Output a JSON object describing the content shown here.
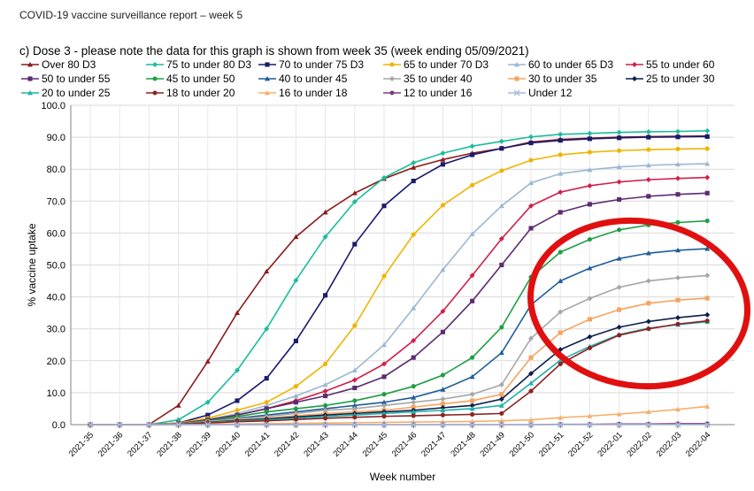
{
  "report_header": "COVID-19 vaccine surveillance report – week 5",
  "chart_data": {
    "type": "line",
    "title": "c) Dose 3 - please note the data for this graph is shown from week 35 (week ending 05/09/2021)",
    "xlabel": "Week number",
    "ylabel": "% vaccine uptake",
    "ylim": [
      0,
      100
    ],
    "yticks": [
      "0.0",
      "10.0",
      "20.0",
      "30.0",
      "40.0",
      "50.0",
      "60.0",
      "70.0",
      "80.0",
      "90.0",
      "100.0"
    ],
    "categories": [
      "2021-35",
      "2021-36",
      "2021-37",
      "2021-38",
      "2021-39",
      "2021-40",
      "2021-41",
      "2021-42",
      "2021-43",
      "2021-44",
      "2021-45",
      "2021-46",
      "2021-47",
      "2021-48",
      "2021-49",
      "2021-50",
      "2021-51",
      "2021-52",
      "2022-01",
      "2022-02",
      "2022-03",
      "2022-04"
    ],
    "grid": true,
    "legend_position": "top",
    "series": [
      {
        "name": "Over 80 D3",
        "color": "#8B1A1A",
        "marker": "triangle",
        "values": [
          0,
          0,
          0,
          6,
          19.8,
          35,
          48,
          58.8,
          66.5,
          72.5,
          77,
          80.5,
          83,
          85,
          86.5,
          88.5,
          89.3,
          89.7,
          90,
          90.2,
          90.3,
          90.4
        ]
      },
      {
        "name": "75 to under 80 D3",
        "color": "#1ABC9C",
        "marker": "diamond",
        "values": [
          0,
          0,
          0,
          1.5,
          7,
          17,
          30,
          45.2,
          58.8,
          69.8,
          77.3,
          82,
          85,
          87.2,
          88.7,
          90.1,
          90.9,
          91.2,
          91.5,
          91.7,
          91.8,
          92
        ]
      },
      {
        "name": "70 to under 75 D3",
        "color": "#1A1A6E",
        "marker": "square",
        "values": [
          0,
          0,
          0,
          0.5,
          3,
          7.5,
          14.5,
          26.2,
          40.5,
          56.5,
          68.5,
          76.3,
          81.5,
          84.5,
          86.5,
          88.2,
          89,
          89.5,
          89.8,
          90,
          90.1,
          90.2
        ]
      },
      {
        "name": "65 to under 70 D3",
        "color": "#F0B400",
        "marker": "circle",
        "values": [
          0,
          0,
          0,
          0.5,
          2,
          4.5,
          7,
          12,
          19,
          31,
          46.5,
          59.5,
          68.7,
          75,
          79.5,
          82.8,
          84.5,
          85.3,
          85.8,
          86.1,
          86.3,
          86.4
        ]
      },
      {
        "name": "60 to under 65 D3",
        "color": "#9AB7D3",
        "marker": "triangle",
        "values": [
          0,
          0,
          0,
          0.3,
          1.5,
          3.5,
          6,
          9,
          12.5,
          17,
          25,
          36.5,
          48.5,
          59.7,
          68.5,
          75.7,
          78.6,
          79.8,
          80.7,
          81.2,
          81.5,
          81.7
        ]
      },
      {
        "name": "55 to under 60",
        "color": "#D0204A",
        "marker": "diamond",
        "values": [
          0,
          0,
          0,
          0.3,
          1.5,
          3,
          5,
          7.5,
          10.5,
          14,
          19,
          26.3,
          35.5,
          46.7,
          58.2,
          68.5,
          72.8,
          74.8,
          76,
          76.7,
          77.1,
          77.4
        ]
      },
      {
        "name": "50 to under 55",
        "color": "#5B2C6F",
        "marker": "square",
        "values": [
          0,
          0,
          0,
          0.3,
          1.5,
          3,
          5,
          7,
          9,
          11.5,
          15,
          21,
          29,
          38.7,
          50,
          61.5,
          66.5,
          69,
          70.5,
          71.5,
          72.1,
          72.5
        ]
      },
      {
        "name": "45 to under 50",
        "color": "#1E9E44",
        "marker": "circle",
        "values": [
          0,
          0,
          0,
          0.2,
          1.2,
          2.5,
          4,
          5,
          6,
          7.5,
          9.5,
          12,
          15.5,
          21,
          30.5,
          46.2,
          54,
          58,
          61,
          62.5,
          63.3,
          63.8
        ]
      },
      {
        "name": "40 to under 45",
        "color": "#1F5C99",
        "marker": "triangle",
        "values": [
          0,
          0,
          0,
          0.2,
          1,
          2,
          3,
          4,
          5,
          6,
          7,
          8.5,
          11,
          15,
          22.5,
          37.5,
          45,
          49,
          52,
          53.7,
          54.6,
          55.1
        ]
      },
      {
        "name": "35 to under 40",
        "color": "#A6A6A6",
        "marker": "diamond",
        "values": [
          0,
          0,
          0,
          0.2,
          1,
          1.8,
          2.5,
          3.5,
          4.5,
          5,
          6,
          7,
          8,
          9.5,
          12.5,
          27,
          35.3,
          39.5,
          43,
          45,
          46,
          46.7
        ]
      },
      {
        "name": "30 to under 35",
        "color": "#F4A460",
        "marker": "square",
        "values": [
          0,
          0,
          0,
          0.1,
          0.8,
          1.5,
          2,
          2.8,
          3.5,
          4,
          4.5,
          5.5,
          6.5,
          7.5,
          9.5,
          21,
          28.8,
          33,
          36,
          38,
          39,
          39.6
        ]
      },
      {
        "name": "25 to under 30",
        "color": "#0D1E4A",
        "marker": "diamond",
        "values": [
          0,
          0,
          0,
          0.1,
          0.7,
          1.3,
          1.8,
          2.4,
          3,
          3.5,
          4,
          4.5,
          5.3,
          6,
          8,
          16,
          23.5,
          27.5,
          30.5,
          32.3,
          33.5,
          34.4
        ]
      },
      {
        "name": "20 to under 25",
        "color": "#20B2AA",
        "marker": "triangle",
        "values": [
          0,
          0,
          0,
          0.1,
          0.6,
          1.1,
          1.5,
          2,
          2.5,
          3,
          3.5,
          4,
          4.5,
          5,
          6,
          13,
          20.2,
          24.5,
          28.2,
          30.2,
          31.3,
          32.2
        ]
      },
      {
        "name": "18 to under 20",
        "color": "#8B2323",
        "marker": "circle",
        "values": [
          0,
          0,
          0,
          0.1,
          0.5,
          0.9,
          1.2,
          1.6,
          2,
          2.3,
          2.6,
          2.8,
          3,
          3.2,
          3.5,
          10.5,
          19,
          24,
          28,
          30,
          31.5,
          32.5
        ]
      },
      {
        "name": "16 to under 18",
        "color": "#F5B06B",
        "marker": "triangle",
        "values": [
          0,
          0,
          0,
          0,
          0.1,
          0.2,
          0.3,
          0.4,
          0.5,
          0.6,
          0.7,
          0.8,
          0.9,
          1,
          1.2,
          1.5,
          2.2,
          2.7,
          3.3,
          4,
          4.8,
          5.7
        ]
      },
      {
        "name": "12 to under 16",
        "color": "#7B3F7B",
        "marker": "circle",
        "values": [
          0,
          0,
          0,
          0,
          0,
          0,
          0,
          0,
          0,
          0,
          0,
          0,
          0,
          0,
          0,
          0,
          0.1,
          0.1,
          0.2,
          0.2,
          0.3,
          0.3
        ]
      },
      {
        "name": "Under 12",
        "color": "#A9BCD6",
        "marker": "x",
        "values": [
          0,
          0,
          0,
          0,
          0,
          0,
          0,
          0,
          0,
          0,
          0,
          0,
          0,
          0,
          0,
          0,
          0,
          0,
          0,
          0,
          0,
          0
        ]
      }
    ],
    "annotation": {
      "type": "ellipse",
      "color": "#E01010",
      "description": "red ellipse highlighting weeks 2021-51 to 2022-04, ~15–65%"
    }
  }
}
